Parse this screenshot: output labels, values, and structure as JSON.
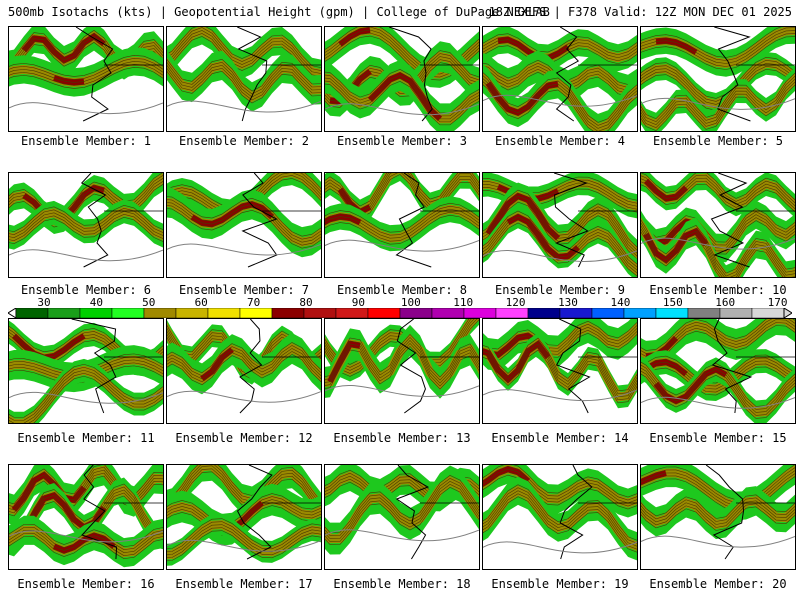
{
  "header": {
    "left": "500mb Isotachs (kts) | Geopotential Height (gpm) | College of DuPage NEXLAB",
    "right": "18Z GEFS | F378 Valid: 12Z MON DEC 01 2025"
  },
  "members": [
    "Ensemble Member: 1",
    "Ensemble Member: 2",
    "Ensemble Member: 3",
    "Ensemble Member: 4",
    "Ensemble Member: 5",
    "Ensemble Member: 6",
    "Ensemble Member: 7",
    "Ensemble Member: 8",
    "Ensemble Member: 9",
    "Ensemble Member: 10",
    "Ensemble Member: 11",
    "Ensemble Member: 12",
    "Ensemble Member: 13",
    "Ensemble Member: 14",
    "Ensemble Member: 15",
    "Ensemble Member: 16",
    "Ensemble Member: 17",
    "Ensemble Member: 18",
    "Ensemble Member: 19",
    "Ensemble Member: 20"
  ],
  "colorbar": {
    "ticks": [
      "30",
      "40",
      "50",
      "60",
      "70",
      "80",
      "90",
      "100",
      "110",
      "120",
      "130",
      "140",
      "150",
      "160",
      "170"
    ],
    "colors": [
      "#006400",
      "#1a9e1a",
      "#00d000",
      "#22ff22",
      "#a08a00",
      "#c8b400",
      "#f0e000",
      "#ffff00",
      "#8b0000",
      "#b01010",
      "#d01818",
      "#ff0000",
      "#8b008b",
      "#b000b0",
      "#dd00dd",
      "#ff40ff",
      "#00008b",
      "#1818d0",
      "#0060ff",
      "#00a0ff",
      "#00e0ff",
      "#808080",
      "#b0b0b0",
      "#d8d8d8"
    ]
  }
}
